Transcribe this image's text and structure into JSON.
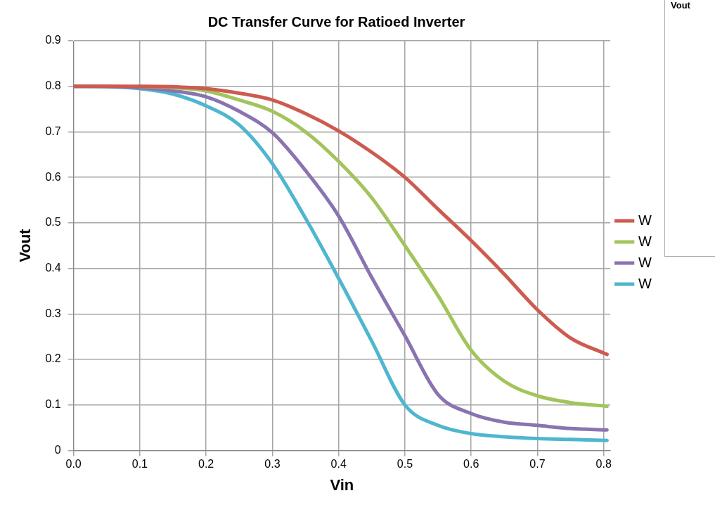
{
  "chart_data": {
    "type": "line",
    "title": "DC Transfer Curve for Ratioed Inverter",
    "xlabel": "Vin",
    "ylabel": "Vout",
    "x": [
      0,
      0.05,
      0.1,
      0.15,
      0.2,
      0.25,
      0.3,
      0.35,
      0.4,
      0.45,
      0.5,
      0.55,
      0.6,
      0.65,
      0.7,
      0.75,
      0.805
    ],
    "series": [
      {
        "name": "W",
        "color": "#cd5b4f",
        "values": [
          0.8,
          0.8,
          0.8,
          0.799,
          0.795,
          0.785,
          0.77,
          0.74,
          0.702,
          0.655,
          0.6,
          0.53,
          0.461,
          0.387,
          0.309,
          0.247,
          0.211
        ]
      },
      {
        "name": "W",
        "color": "#a3c45c",
        "values": [
          null,
          null,
          0.8,
          0.797,
          0.79,
          0.77,
          0.745,
          0.7,
          0.635,
          0.555,
          0.45,
          0.34,
          0.22,
          0.152,
          0.12,
          0.105,
          0.097
        ]
      },
      {
        "name": "W",
        "color": "#8a73b1",
        "values": [
          0.8,
          0.8,
          0.797,
          0.79,
          0.777,
          0.745,
          0.698,
          0.615,
          0.515,
          0.38,
          0.252,
          0.123,
          0.081,
          0.062,
          0.055,
          0.048,
          0.045
        ]
      },
      {
        "name": "W",
        "color": "#4fb6cf",
        "values": [
          0.8,
          0.799,
          0.795,
          0.783,
          0.757,
          0.715,
          0.63,
          0.51,
          0.378,
          0.24,
          0.1,
          0.055,
          0.037,
          0.03,
          0.026,
          0.024,
          0.022
        ]
      }
    ],
    "xlim": [
      0,
      0.81
    ],
    "xticks": [
      {
        "value": 0,
        "label": "0.0"
      },
      0.1,
      0.2,
      0.3,
      0.4,
      0.5,
      0.6,
      0.7,
      0.8
    ],
    "ylim": [
      0,
      0.9
    ],
    "yticks": [
      0,
      0.1,
      0.2,
      0.3,
      0.4,
      0.5,
      0.6,
      0.7,
      0.8,
      0.9
    ],
    "grid": true,
    "legend": "right",
    "marker": "none",
    "line_style": "solid",
    "annotations": [
      "Vout"
    ]
  }
}
